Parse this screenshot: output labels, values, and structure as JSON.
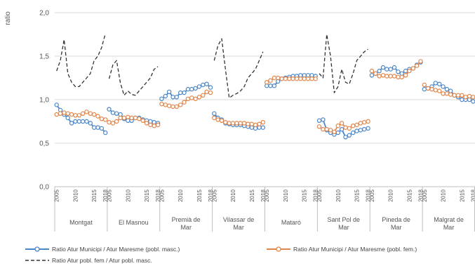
{
  "chart_data": {
    "type": "line",
    "ylabel": "ratio",
    "ylim": [
      0,
      2
    ],
    "yticks": [
      "0,0",
      "0,5",
      "1,0",
      "1,5",
      "2,0"
    ],
    "grid": "horizontal",
    "legend_position": "bottom",
    "x_tick_labels": [
      "2005",
      "2010",
      "2015",
      "2018"
    ],
    "years": [
      2005,
      2006,
      2007,
      2008,
      2009,
      2010,
      2011,
      2012,
      2013,
      2014,
      2015,
      2016,
      2017,
      2018
    ],
    "groups": [
      {
        "name": "Montgat",
        "masc": [
          0.94,
          0.88,
          0.83,
          0.79,
          0.73,
          0.75,
          0.75,
          0.75,
          0.75,
          0.73,
          0.68,
          0.68,
          0.67,
          0.62
        ],
        "fem": [
          0.83,
          0.84,
          0.85,
          0.84,
          0.83,
          0.82,
          0.82,
          0.84,
          0.86,
          0.84,
          0.83,
          0.81,
          0.78,
          0.77
        ],
        "ratio": [
          1.33,
          1.45,
          1.69,
          1.3,
          1.2,
          1.15,
          1.15,
          1.2,
          1.25,
          1.3,
          1.45,
          1.5,
          1.6,
          1.76
        ]
      },
      {
        "name": "El Masnou",
        "masc": [
          0.89,
          0.85,
          0.84,
          0.83,
          0.78,
          0.76,
          0.76,
          0.79,
          0.79,
          0.77,
          0.76,
          0.75,
          0.74,
          0.73
        ],
        "fem": [
          0.74,
          0.73,
          0.75,
          0.79,
          0.79,
          0.8,
          0.79,
          0.79,
          0.78,
          0.76,
          0.73,
          0.71,
          0.7,
          0.71
        ],
        "ratio": [
          1.24,
          1.4,
          1.45,
          1.19,
          1.05,
          1.1,
          1.06,
          1.05,
          1.1,
          1.15,
          1.2,
          1.25,
          1.35,
          1.38
        ]
      },
      {
        "name": "Premià de Mar",
        "masc": [
          1.01,
          1.04,
          1.09,
          1.03,
          1.03,
          1.08,
          1.08,
          1.12,
          1.12,
          1.13,
          1.15,
          1.17,
          1.18,
          1.14
        ],
        "fem": [
          0.95,
          0.94,
          0.93,
          0.92,
          0.92,
          0.94,
          0.97,
          1.01,
          1.02,
          1.01,
          1.03,
          1.05,
          1.09,
          1.08
        ],
        "ratio": []
      },
      {
        "name": "Vilassar de Mar",
        "masc": [
          0.84,
          0.79,
          0.77,
          0.73,
          0.72,
          0.71,
          0.71,
          0.71,
          0.7,
          0.69,
          0.68,
          0.67,
          0.68,
          0.68
        ],
        "fem": [
          0.79,
          0.77,
          0.76,
          0.74,
          0.73,
          0.73,
          0.73,
          0.73,
          0.73,
          0.72,
          0.72,
          0.71,
          0.72,
          0.74
        ],
        "ratio": [
          1.45,
          1.62,
          1.7,
          1.35,
          1.02,
          1.05,
          1.07,
          1.1,
          1.15,
          1.25,
          1.3,
          1.35,
          1.45,
          1.55
        ]
      },
      {
        "name": "Mataró",
        "masc": [
          1.16,
          1.16,
          1.16,
          1.21,
          1.24,
          1.25,
          1.26,
          1.27,
          1.27,
          1.28,
          1.28,
          1.28,
          1.28,
          1.27
        ],
        "fem": [
          1.2,
          1.22,
          1.25,
          1.25,
          1.24,
          1.24,
          1.24,
          1.24,
          1.24,
          1.24,
          1.24,
          1.24,
          1.24,
          1.24
        ],
        "ratio": []
      },
      {
        "name": "Sant Pol de Mar",
        "masc": [
          0.76,
          0.77,
          0.65,
          0.62,
          0.6,
          0.62,
          0.66,
          0.57,
          0.59,
          0.62,
          0.64,
          0.65,
          0.66,
          0.67
        ],
        "fem": [
          0.69,
          0.66,
          0.66,
          0.65,
          0.63,
          0.7,
          0.73,
          0.68,
          0.67,
          0.7,
          0.71,
          0.73,
          0.74,
          0.75
        ],
        "ratio": [
          1.3,
          1.25,
          1.75,
          1.5,
          1.08,
          1.15,
          1.35,
          1.2,
          1.18,
          1.3,
          1.45,
          1.5,
          1.55,
          1.58
        ]
      },
      {
        "name": "Pineda de Mar",
        "masc": [
          1.28,
          1.3,
          1.33,
          1.37,
          1.35,
          1.35,
          1.37,
          1.32,
          1.3,
          1.33,
          1.35,
          1.36,
          1.4,
          1.43
        ],
        "fem": [
          1.33,
          1.3,
          1.27,
          1.28,
          1.27,
          1.27,
          1.27,
          1.26,
          1.26,
          1.28,
          1.33,
          1.36,
          1.39,
          1.44
        ],
        "ratio": []
      },
      {
        "name": "Malgrat de Mar",
        "masc": [
          1.12,
          1.13,
          1.15,
          1.19,
          1.18,
          1.15,
          1.12,
          1.1,
          1.05,
          1.03,
          1.0,
          1.0,
          1.0,
          0.98
        ],
        "fem": [
          1.17,
          1.13,
          1.12,
          1.11,
          1.1,
          1.07,
          1.07,
          1.06,
          1.05,
          1.05,
          1.05,
          1.03,
          1.04,
          1.03
        ],
        "ratio": []
      }
    ],
    "series": [
      {
        "key": "masc",
        "name": "Ratio Atur Municipi / Atur Maresme (pobl. masc.)",
        "color": "#4a86c8",
        "marker": "circle"
      },
      {
        "key": "fem",
        "name": "Ratio Atur Municipi / Atur Maresme (pobl. fem.)",
        "color": "#e2854a",
        "marker": "circle"
      },
      {
        "key": "ratio",
        "name": "Ratio Atur pobl. fem / Atur pobl. masc.",
        "color": "#333333",
        "dashed": true
      }
    ]
  }
}
